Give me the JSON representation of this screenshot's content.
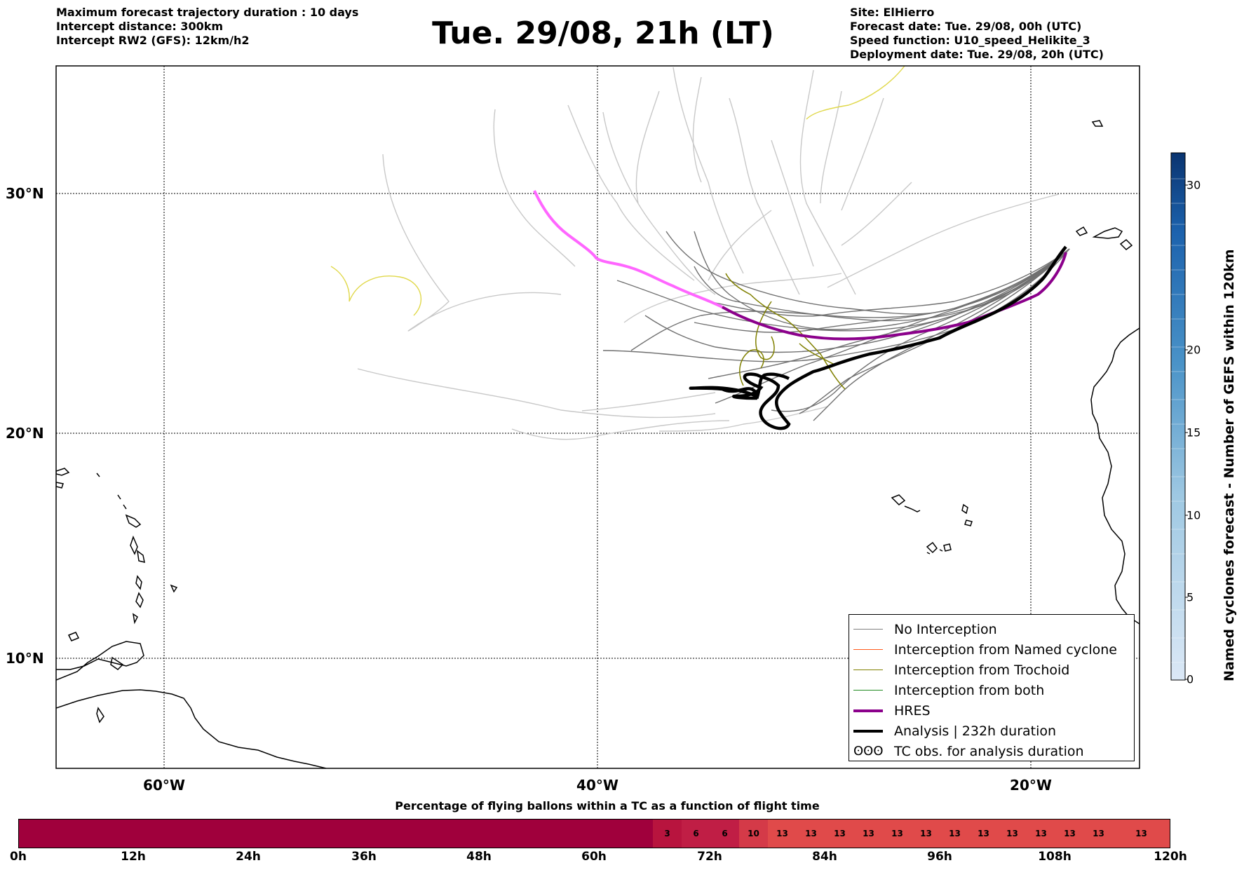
{
  "header_left": [
    "Maximum forecast trajectory duration : 10 days",
    "Intercept distance: 300km",
    "Intercept RW2 (GFS):  12km/h2"
  ],
  "header_right": [
    "Site: ElHierro",
    "Forecast date: Tue. 29/08, 00h (UTC)",
    "Speed function: U10_speed_Helikite_3",
    "Deployment date: Tue. 29/08, 20h (UTC)"
  ],
  "title": "Tue. 29/08, 21h (LT)",
  "map": {
    "lat_labels": [
      "30°N",
      "20°N",
      "10°N"
    ],
    "lon_labels": [
      "60°W",
      "40°W",
      "20°W"
    ]
  },
  "legend": {
    "items": [
      {
        "label": "No Interception",
        "color": "#808080"
      },
      {
        "label": "Interception from Named cyclone",
        "color": "#ff5a1e"
      },
      {
        "label": "Interception from Trochoid",
        "color": "#808000"
      },
      {
        "label": "Interception from both",
        "color": "#228b22"
      },
      {
        "label": "HRES",
        "color": "#8b008b"
      },
      {
        "label": "Analysis | 232h duration",
        "color": "#000000"
      },
      {
        "label": "TC obs. for analysis duration",
        "symbol": "ʘʘʘ"
      }
    ]
  },
  "colorbar": {
    "title": "Named cyclones forecast - Number of GEFS within 120km",
    "ticks": [
      "0",
      "5",
      "10",
      "15",
      "20",
      "30"
    ]
  },
  "bottom": {
    "title": "Percentage of flying ballons within a TC as a function of flight time",
    "cells": [
      "3",
      "6",
      "6",
      "10",
      "13",
      "13",
      "13",
      "13",
      "13",
      "13",
      "13",
      "13",
      "13",
      "13",
      "13",
      "13",
      "13"
    ],
    "ticks": [
      "0h",
      "12h",
      "24h",
      "36h",
      "48h",
      "60h",
      "72h",
      "84h",
      "96h",
      "108h",
      "120h"
    ]
  }
}
